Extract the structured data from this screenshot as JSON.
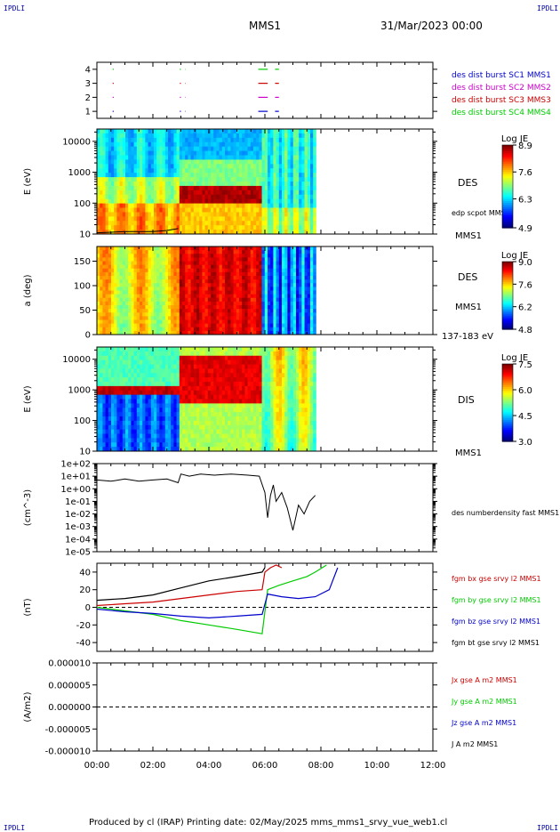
{
  "header": {
    "corner_left": "IPDLI",
    "corner_right": "IPDLI",
    "mission": "MMS1",
    "datetime": "31/Mar/2023 00:00"
  },
  "footer": {
    "text": "Produced by cl (IRAP)   Printing date: 02/May/2025   mms_mms1_srvy_vue_web1.cl",
    "corner_left": "IPDLI",
    "corner_right": "IPDLI"
  },
  "colors": {
    "sc1": "#0000cc",
    "sc2": "#cc00cc",
    "sc3": "#cc0000",
    "sc4": "#00cc00",
    "black": "#000000"
  },
  "time_axis": {
    "ticks": [
      "00:00",
      "02:00",
      "04:00",
      "06:00",
      "08:00",
      "10:00",
      "12:00"
    ],
    "range_hours": [
      0,
      12
    ]
  },
  "chart_data": [
    {
      "type": "line",
      "panel": "burst",
      "ylabel": "",
      "yticks": [
        "1",
        "2",
        "3",
        "4"
      ],
      "ylim": [
        0.5,
        4.5
      ],
      "series": [
        {
          "name": "des dist burst SC1 MMS1",
          "color": "#0000cc",
          "y": 1,
          "intervals": [
            [
              0.5,
              0.6
            ],
            [
              2.9,
              3.0
            ],
            [
              3.1,
              3.15
            ],
            [
              5.7,
              6.1
            ],
            [
              6.3,
              6.5
            ]
          ]
        },
        {
          "name": "des dist burst SC2 MMS2",
          "color": "#cc00cc",
          "y": 2,
          "intervals": [
            [
              0.5,
              0.6
            ],
            [
              2.9,
              3.0
            ],
            [
              3.1,
              3.15
            ],
            [
              5.7,
              6.1
            ],
            [
              6.3,
              6.5
            ]
          ]
        },
        {
          "name": "des dist burst SC3 MMS3",
          "color": "#cc0000",
          "y": 3,
          "intervals": [
            [
              0.5,
              0.6
            ],
            [
              2.9,
              3.0
            ],
            [
              3.1,
              3.15
            ],
            [
              5.7,
              6.1
            ],
            [
              6.3,
              6.5
            ]
          ]
        },
        {
          "name": "des dist burst SC4 MMS4",
          "color": "#00cc00",
          "y": 4,
          "intervals": [
            [
              0.5,
              0.6
            ],
            [
              2.9,
              3.0
            ],
            [
              3.1,
              3.15
            ],
            [
              5.7,
              6.1
            ],
            [
              6.3,
              6.5
            ]
          ]
        }
      ]
    },
    {
      "type": "heatmap",
      "panel": "des_energy",
      "ylabel": "E (eV)",
      "yscale": "log",
      "ylim": [
        10,
        25000
      ],
      "yticks": [
        "10",
        "100",
        "1000",
        "10000"
      ],
      "right_labels": [
        "DES",
        "edp scpot MMS1",
        "MMS1"
      ],
      "colorbar": {
        "title": "Log JE",
        "ticks": [
          "8.9",
          "7.6",
          "6.3",
          "4.9"
        ],
        "min": 4.9,
        "max": 8.9
      },
      "data_end_hours": 7.8,
      "scpot_series": {
        "name": "edp scpot MMS1",
        "t": [
          0,
          1,
          2,
          2.5,
          2.9
        ],
        "y": [
          11,
          12,
          12,
          13,
          15
        ]
      }
    },
    {
      "type": "heatmap",
      "panel": "des_pitch",
      "ylabel": "a (deg)",
      "ylim": [
        0,
        180
      ],
      "yticks": [
        "0",
        "50",
        "100",
        "150"
      ],
      "right_labels": [
        "DES",
        "MMS1",
        "137-183 eV"
      ],
      "colorbar": {
        "title": "Log JE",
        "ticks": [
          "9.0",
          "7.6",
          "6.2",
          "4.8"
        ],
        "min": 4.8,
        "max": 9.0
      },
      "data_end_hours": 7.8
    },
    {
      "type": "heatmap",
      "panel": "dis_energy",
      "ylabel": "E (eV)",
      "yscale": "log",
      "ylim": [
        10,
        25000
      ],
      "yticks": [
        "10",
        "100",
        "1000",
        "10000"
      ],
      "right_labels": [
        "DIS",
        "MMS1"
      ],
      "colorbar": {
        "title": "Log JE",
        "ticks": [
          "7.5",
          "6.0",
          "4.5",
          "3.0"
        ],
        "min": 3.0,
        "max": 7.5
      },
      "data_end_hours": 7.8
    },
    {
      "type": "line",
      "panel": "density",
      "ylabel": "(cm^-3)",
      "yscale": "log",
      "ylim": [
        1e-05,
        100
      ],
      "yticks": [
        "1e-05",
        "1e-04",
        "1e-03",
        "1e-02",
        "1e-01",
        "1e+00",
        "1e+01",
        "1e+02"
      ],
      "series": [
        {
          "name": "des numberdensity fast MMS1",
          "color": "#000000",
          "t": [
            0,
            0.5,
            1,
            1.5,
            2,
            2.5,
            2.9,
            3.0,
            3.3,
            3.7,
            4.2,
            4.8,
            5.4,
            5.8,
            6.0,
            6.1,
            6.2,
            6.3,
            6.4,
            6.6,
            6.8,
            7.0,
            7.2,
            7.4,
            7.6,
            7.8
          ],
          "y": [
            5,
            4,
            6,
            4,
            5,
            6,
            3,
            15,
            10,
            15,
            12,
            15,
            12,
            10,
            0.5,
            0.005,
            0.3,
            2,
            0.1,
            0.5,
            0.03,
            0.0005,
            0.05,
            0.01,
            0.1,
            0.3
          ]
        }
      ]
    },
    {
      "type": "line",
      "panel": "fgm",
      "ylabel": "(nT)",
      "ylim": [
        -50,
        50
      ],
      "yticks": [
        "-40",
        "-20",
        "0",
        "20",
        "40"
      ],
      "series": [
        {
          "name": "fgm bx gse srvy l2 MMS1",
          "color": "#cc0000",
          "t": [
            0,
            1,
            2,
            3,
            4,
            5,
            5.9,
            6.0,
            6.2,
            6.4,
            6.6
          ],
          "y": [
            2,
            4,
            6,
            10,
            14,
            18,
            20,
            40,
            45,
            48,
            45
          ]
        },
        {
          "name": "fgm by gse srvy l2 MMS1",
          "color": "#00cc00",
          "t": [
            0,
            1,
            2,
            3,
            4,
            5,
            5.9,
            6.1,
            6.5,
            7.0,
            7.5,
            7.8,
            8.2
          ],
          "y": [
            0,
            -4,
            -8,
            -15,
            -20,
            -25,
            -30,
            20,
            25,
            30,
            35,
            40,
            48
          ]
        },
        {
          "name": "fgm bz gse srvy l2 MMS1",
          "color": "#0000cc",
          "t": [
            0,
            1,
            2,
            3,
            4,
            5,
            5.9,
            6.1,
            6.6,
            7.2,
            7.8,
            8.3,
            8.6
          ],
          "y": [
            -2,
            -5,
            -7,
            -10,
            -12,
            -10,
            -8,
            15,
            12,
            10,
            12,
            20,
            45
          ]
        },
        {
          "name": "fgm bt gse srvy l2 MMS1",
          "color": "#000000",
          "t": [
            0,
            1,
            2,
            3,
            4,
            5,
            5.9,
            6.0
          ],
          "y": [
            8,
            10,
            14,
            22,
            30,
            35,
            40,
            45
          ]
        }
      ]
    },
    {
      "type": "line",
      "panel": "current",
      "ylabel": "(A/m2)",
      "ylim": [
        -1e-05,
        1e-05
      ],
      "yticks": [
        "-0.000010",
        "-0.000005",
        "0.000000",
        "0.000005",
        "0.000010"
      ],
      "series": [
        {
          "name": "Jx gse A m2 MMS1",
          "color": "#cc0000"
        },
        {
          "name": "Jy gse A m2 MMS1",
          "color": "#00cc00"
        },
        {
          "name": "Jz gse A m2 MMS1",
          "color": "#0000cc"
        },
        {
          "name": "J A m2 MMS1",
          "color": "#000000"
        }
      ]
    }
  ]
}
